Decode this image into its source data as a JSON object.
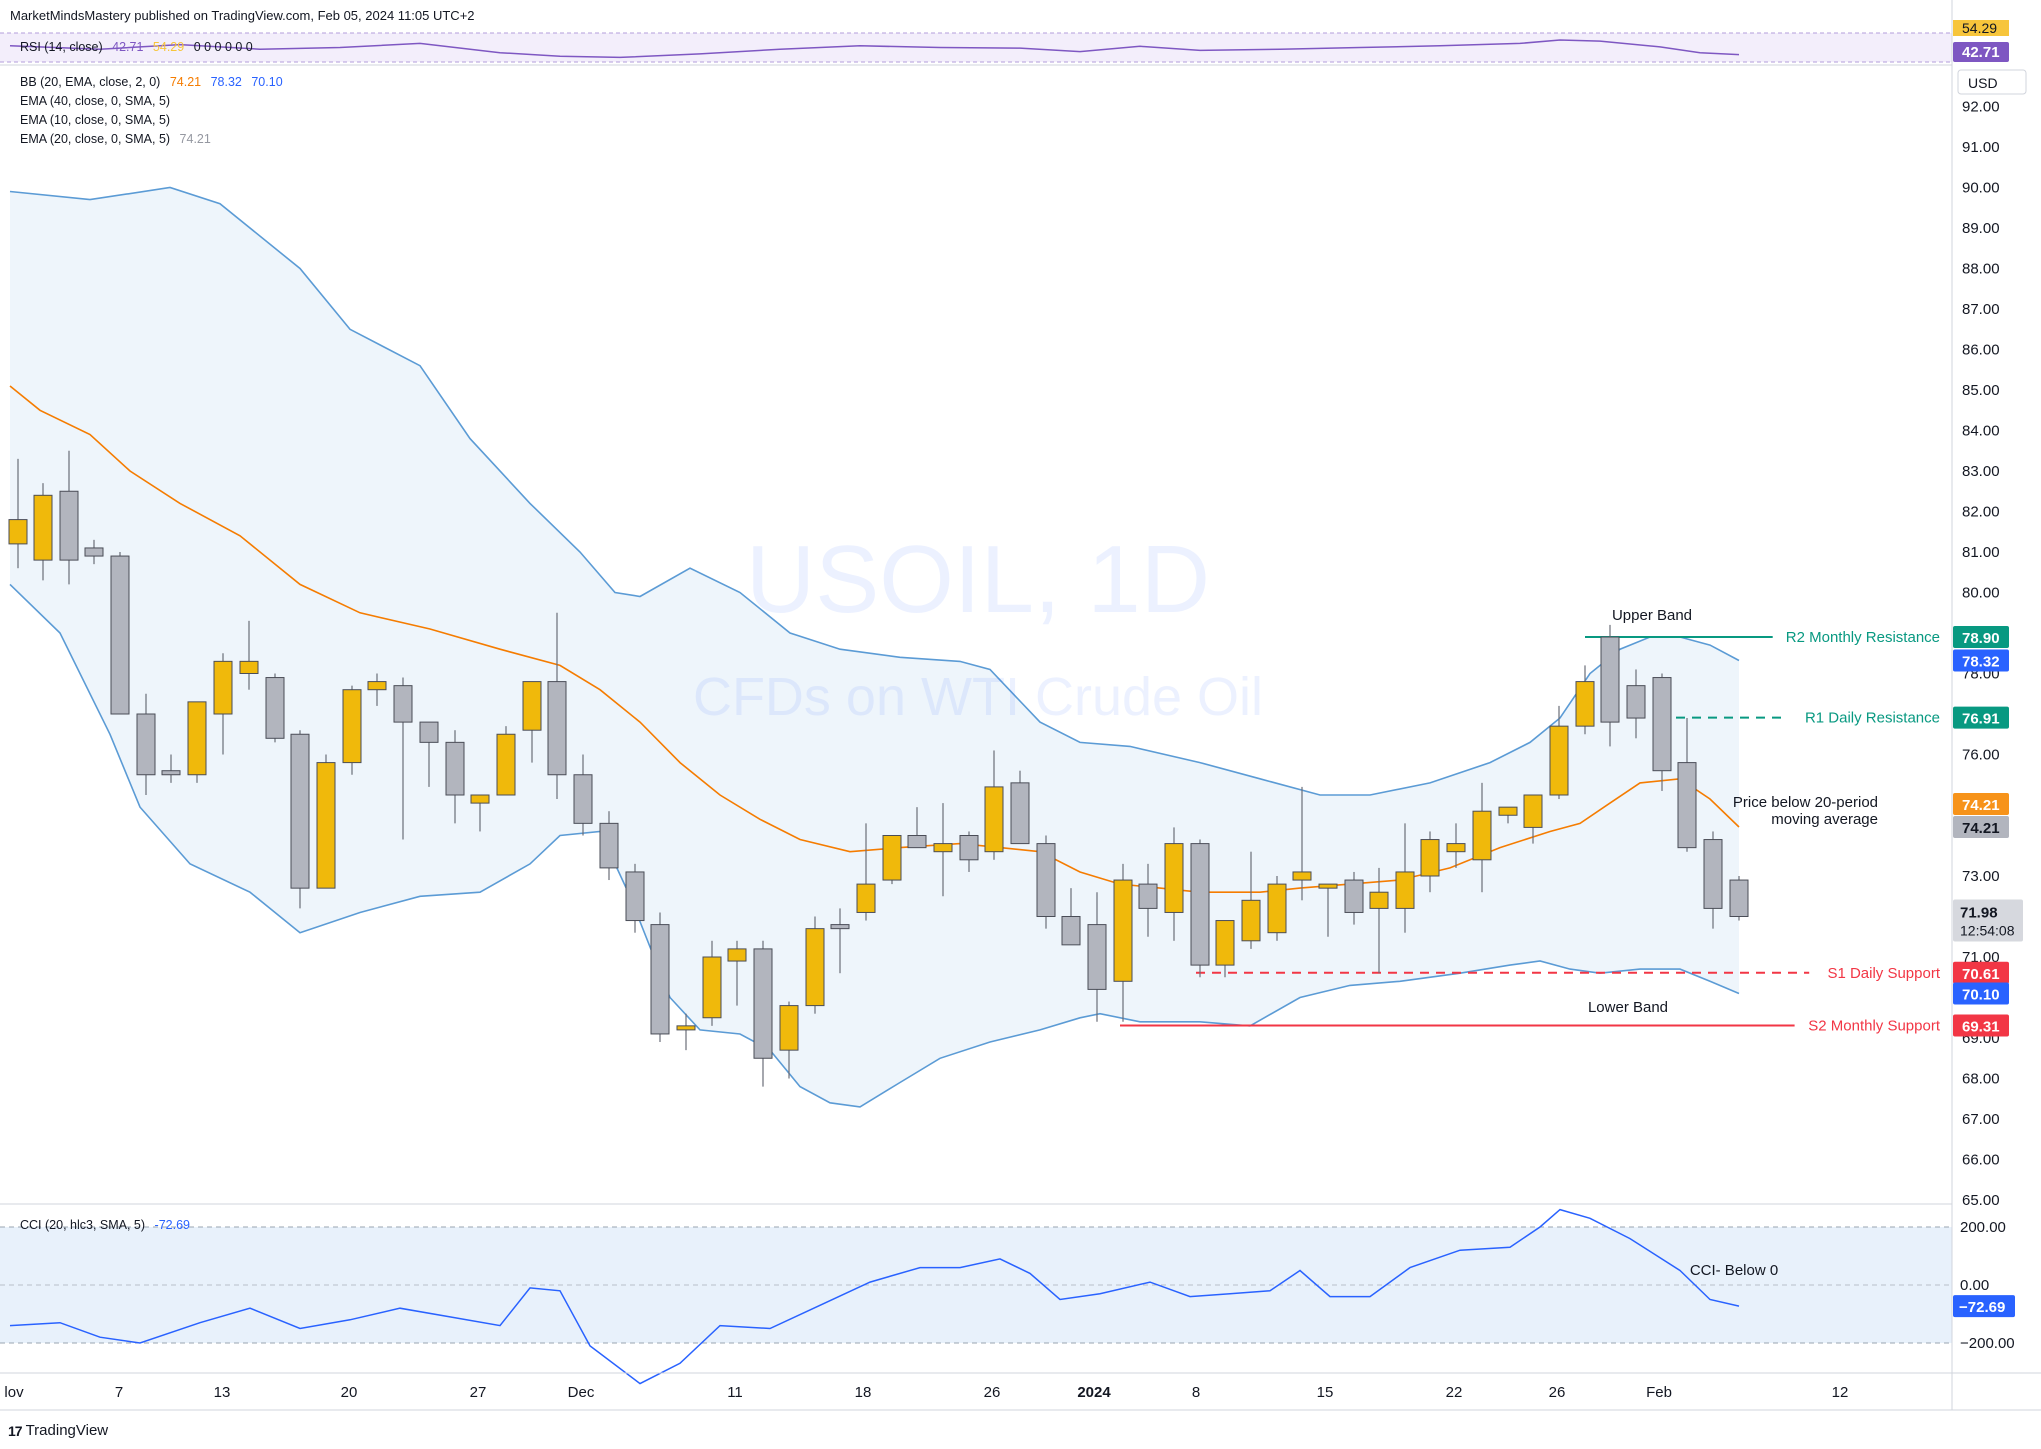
{
  "header": {
    "published": "MarketMindsMastery published on TradingView.com, Feb 05, 2024 11:05 UTC+2"
  },
  "rsi": {
    "label": "RSI (14, close)",
    "value": "42.71",
    "ma_value": "54.29",
    "extra": "0 0 0 0 0 0",
    "axis_top": "54.29",
    "axis_badge": "42.71"
  },
  "indicators": [
    {
      "label": "BB (20, EMA, close, 2, 0)",
      "v1": "74.21",
      "v2": "78.32",
      "v3": "70.10"
    },
    {
      "label": "EMA (40, close, 0, SMA, 5)"
    },
    {
      "label": "EMA (10, close, 0, SMA, 5)"
    },
    {
      "label": "EMA (20, close, 0, SMA, 5)",
      "v1": "74.21"
    }
  ],
  "currency": "USD",
  "watermark": {
    "symbol": "USOIL, 1D",
    "name": "CFDs on WTI Crude Oil"
  },
  "annotations": {
    "upper_band": "Upper Band",
    "lower_band": "Lower Band",
    "price_note_1": "Price below 20-period",
    "price_note_2": "moving average",
    "cci_note": "CCI- Below 0"
  },
  "levels": [
    {
      "label": "R2 Monthly Resistance",
      "value": 78.9,
      "badge": "78.90",
      "color": "#089981",
      "style": "solid"
    },
    {
      "label": "R1 Daily Resistance",
      "value": 76.91,
      "badge": "76.91",
      "color": "#089981",
      "style": "dashed"
    },
    {
      "label": "S1 Daily Support",
      "value": 70.61,
      "badge": "70.61",
      "color": "#f23645",
      "style": "dashed"
    },
    {
      "label": "S2 Monthly Support",
      "value": 69.31,
      "badge": "69.31",
      "color": "#f23645",
      "style": "solid"
    }
  ],
  "price_badges": [
    {
      "value": 78.32,
      "text": "78.32",
      "color": "#2962ff"
    },
    {
      "value": 74.21,
      "text": "74.21",
      "color": "#f7931a"
    },
    {
      "value": 74.21,
      "text": "74.21",
      "color": "#b2b5be"
    },
    {
      "value": 70.1,
      "text": "70.10",
      "color": "#2962ff"
    }
  ],
  "last_price": {
    "value": "71.98",
    "countdown": "12:54:08"
  },
  "cci": {
    "label": "CCI (20, hlc3, SMA, 5)",
    "value": "-72.69",
    "badge": "−72.69",
    "ticks": [
      "200.00",
      "0.00",
      "−200.00"
    ]
  },
  "x_axis": [
    {
      "label": "lov",
      "x": 14
    },
    {
      "label": "7",
      "x": 119
    },
    {
      "label": "13",
      "x": 222
    },
    {
      "label": "20",
      "x": 349
    },
    {
      "label": "27",
      "x": 478
    },
    {
      "label": "Dec",
      "x": 581
    },
    {
      "label": "11",
      "x": 735
    },
    {
      "label": "18",
      "x": 863
    },
    {
      "label": "26",
      "x": 992
    },
    {
      "label": "2024",
      "x": 1094,
      "bold": true
    },
    {
      "label": "8",
      "x": 1196
    },
    {
      "label": "15",
      "x": 1325
    },
    {
      "label": "22",
      "x": 1454
    },
    {
      "label": "26",
      "x": 1557
    },
    {
      "label": "Feb",
      "x": 1659
    },
    {
      "label": "12",
      "x": 1840
    }
  ],
  "brand": "TradingView",
  "colors": {
    "up": "#f0b90b",
    "down": "#b2b5be",
    "band": "#5b9bd5",
    "ema": "#f57c00",
    "band_fill": "#eef5fb"
  },
  "chart_data": {
    "type": "candlestick",
    "title": "USOIL, 1D",
    "subtitle": "CFDs on WTI Crude Oil",
    "ylabel": "USD",
    "ylim": [
      65,
      93
    ],
    "y_ticks": [
      65,
      66,
      67,
      68,
      69,
      71,
      73,
      76,
      78,
      80,
      81,
      82,
      83,
      84,
      85,
      86,
      87,
      88,
      89,
      90,
      91,
      92
    ],
    "candles": [
      {
        "x": 18,
        "o": 81.2,
        "h": 83.3,
        "l": 80.6,
        "c": 81.8
      },
      {
        "x": 43,
        "o": 80.8,
        "h": 82.7,
        "l": 80.3,
        "c": 82.4
      },
      {
        "x": 69,
        "o": 82.5,
        "h": 83.5,
        "l": 80.2,
        "c": 80.8
      },
      {
        "x": 94,
        "o": 81.1,
        "h": 81.3,
        "l": 80.7,
        "c": 80.9
      },
      {
        "x": 120,
        "o": 80.9,
        "h": 81.0,
        "l": 77.0,
        "c": 77.0
      },
      {
        "x": 146,
        "o": 77.0,
        "h": 77.5,
        "l": 75.0,
        "c": 75.5
      },
      {
        "x": 171,
        "o": 75.6,
        "h": 76.0,
        "l": 75.3,
        "c": 75.5
      },
      {
        "x": 197,
        "o": 75.5,
        "h": 77.3,
        "l": 75.3,
        "c": 77.3
      },
      {
        "x": 223,
        "o": 77.0,
        "h": 78.5,
        "l": 76.0,
        "c": 78.3
      },
      {
        "x": 249,
        "o": 78.0,
        "h": 79.3,
        "l": 77.6,
        "c": 78.3
      },
      {
        "x": 275,
        "o": 77.9,
        "h": 78.0,
        "l": 76.3,
        "c": 76.4
      },
      {
        "x": 300,
        "o": 76.5,
        "h": 76.6,
        "l": 72.2,
        "c": 72.7
      },
      {
        "x": 326,
        "o": 72.7,
        "h": 76.0,
        "l": 72.7,
        "c": 75.8
      },
      {
        "x": 352,
        "o": 75.8,
        "h": 77.7,
        "l": 75.5,
        "c": 77.6
      },
      {
        "x": 377,
        "o": 77.6,
        "h": 78.0,
        "l": 77.2,
        "c": 77.8
      },
      {
        "x": 403,
        "o": 77.7,
        "h": 77.9,
        "l": 73.9,
        "c": 76.8
      },
      {
        "x": 429,
        "o": 76.8,
        "h": 76.8,
        "l": 75.2,
        "c": 76.3
      },
      {
        "x": 455,
        "o": 76.3,
        "h": 76.6,
        "l": 74.3,
        "c": 75.0
      },
      {
        "x": 480,
        "o": 74.8,
        "h": 75.0,
        "l": 74.1,
        "c": 75.0
      },
      {
        "x": 506,
        "o": 75.0,
        "h": 76.7,
        "l": 75.0,
        "c": 76.5
      },
      {
        "x": 532,
        "o": 76.6,
        "h": 77.8,
        "l": 75.8,
        "c": 77.8
      },
      {
        "x": 557,
        "o": 77.8,
        "h": 79.5,
        "l": 74.9,
        "c": 75.5
      },
      {
        "x": 583,
        "o": 75.5,
        "h": 76.0,
        "l": 74.0,
        "c": 74.3
      },
      {
        "x": 609,
        "o": 74.3,
        "h": 74.6,
        "l": 72.9,
        "c": 73.2
      },
      {
        "x": 635,
        "o": 73.1,
        "h": 73.3,
        "l": 71.6,
        "c": 71.9
      },
      {
        "x": 660,
        "o": 71.8,
        "h": 72.1,
        "l": 68.9,
        "c": 69.1
      },
      {
        "x": 686,
        "o": 69.2,
        "h": 69.6,
        "l": 68.7,
        "c": 69.3
      },
      {
        "x": 712,
        "o": 69.5,
        "h": 71.4,
        "l": 69.3,
        "c": 71.0
      },
      {
        "x": 737,
        "o": 70.9,
        "h": 71.4,
        "l": 69.8,
        "c": 71.2
      },
      {
        "x": 763,
        "o": 71.2,
        "h": 71.4,
        "l": 67.8,
        "c": 68.5
      },
      {
        "x": 789,
        "o": 68.7,
        "h": 69.9,
        "l": 68.0,
        "c": 69.8
      },
      {
        "x": 815,
        "o": 69.8,
        "h": 72.0,
        "l": 69.6,
        "c": 71.7
      },
      {
        "x": 840,
        "o": 71.8,
        "h": 72.2,
        "l": 70.6,
        "c": 71.7
      },
      {
        "x": 866,
        "o": 72.1,
        "h": 74.3,
        "l": 71.9,
        "c": 72.8
      },
      {
        "x": 892,
        "o": 72.9,
        "h": 74.0,
        "l": 72.8,
        "c": 74.0
      },
      {
        "x": 917,
        "o": 74.0,
        "h": 74.7,
        "l": 73.9,
        "c": 73.7
      },
      {
        "x": 943,
        "o": 73.6,
        "h": 74.8,
        "l": 72.5,
        "c": 73.8
      },
      {
        "x": 969,
        "o": 74.0,
        "h": 74.1,
        "l": 73.1,
        "c": 73.4
      },
      {
        "x": 994,
        "o": 73.6,
        "h": 76.1,
        "l": 73.4,
        "c": 75.2
      },
      {
        "x": 1020,
        "o": 75.3,
        "h": 75.6,
        "l": 73.8,
        "c": 73.8
      },
      {
        "x": 1046,
        "o": 73.8,
        "h": 74.0,
        "l": 71.7,
        "c": 72.0
      },
      {
        "x": 1071,
        "o": 72.0,
        "h": 72.7,
        "l": 71.3,
        "c": 71.3
      },
      {
        "x": 1097,
        "o": 71.8,
        "h": 72.6,
        "l": 69.4,
        "c": 70.2
      },
      {
        "x": 1123,
        "o": 70.4,
        "h": 73.3,
        "l": 69.4,
        "c": 72.9
      },
      {
        "x": 1148,
        "o": 72.8,
        "h": 73.3,
        "l": 71.5,
        "c": 72.2
      },
      {
        "x": 1174,
        "o": 72.1,
        "h": 74.2,
        "l": 71.4,
        "c": 73.8
      },
      {
        "x": 1200,
        "o": 73.8,
        "h": 73.9,
        "l": 70.5,
        "c": 70.8
      },
      {
        "x": 1225,
        "o": 70.8,
        "h": 71.9,
        "l": 70.5,
        "c": 71.9
      },
      {
        "x": 1251,
        "o": 71.4,
        "h": 73.6,
        "l": 71.2,
        "c": 72.4
      },
      {
        "x": 1277,
        "o": 71.6,
        "h": 73.0,
        "l": 71.4,
        "c": 72.8
      },
      {
        "x": 1302,
        "o": 72.9,
        "h": 75.2,
        "l": 72.4,
        "c": 73.1
      },
      {
        "x": 1328,
        "o": 72.7,
        "h": 72.8,
        "l": 71.5,
        "c": 72.8
      },
      {
        "x": 1354,
        "o": 72.9,
        "h": 73.1,
        "l": 71.8,
        "c": 72.1
      },
      {
        "x": 1379,
        "o": 72.2,
        "h": 73.2,
        "l": 70.6,
        "c": 72.6
      },
      {
        "x": 1405,
        "o": 72.2,
        "h": 74.3,
        "l": 71.6,
        "c": 73.1
      },
      {
        "x": 1430,
        "o": 73.0,
        "h": 74.1,
        "l": 72.6,
        "c": 73.9
      },
      {
        "x": 1456,
        "o": 73.6,
        "h": 74.3,
        "l": 73.2,
        "c": 73.8
      },
      {
        "x": 1482,
        "o": 73.4,
        "h": 75.3,
        "l": 72.6,
        "c": 74.6
      },
      {
        "x": 1508,
        "o": 74.5,
        "h": 74.7,
        "l": 74.3,
        "c": 74.7
      },
      {
        "x": 1533,
        "o": 74.2,
        "h": 75.0,
        "l": 73.8,
        "c": 75.0
      },
      {
        "x": 1559,
        "o": 75.0,
        "h": 77.2,
        "l": 74.9,
        "c": 76.7
      },
      {
        "x": 1585,
        "o": 76.7,
        "h": 78.2,
        "l": 76.5,
        "c": 77.8
      },
      {
        "x": 1610,
        "o": 78.9,
        "h": 79.2,
        "l": 76.2,
        "c": 76.8
      },
      {
        "x": 1636,
        "o": 77.7,
        "h": 78.1,
        "l": 76.4,
        "c": 76.9
      },
      {
        "x": 1662,
        "o": 77.9,
        "h": 78.0,
        "l": 75.1,
        "c": 75.6
      },
      {
        "x": 1687,
        "o": 75.8,
        "h": 76.9,
        "l": 73.6,
        "c": 73.7
      },
      {
        "x": 1713,
        "o": 73.9,
        "h": 74.1,
        "l": 71.7,
        "c": 72.2
      },
      {
        "x": 1739,
        "o": 72.9,
        "h": 73.0,
        "l": 71.9,
        "c": 72.0
      }
    ],
    "bb_upper": [
      [
        10,
        89.9
      ],
      [
        90,
        89.7
      ],
      [
        170,
        90.0
      ],
      [
        220,
        89.6
      ],
      [
        300,
        88.0
      ],
      [
        350,
        86.5
      ],
      [
        420,
        85.6
      ],
      [
        470,
        83.8
      ],
      [
        530,
        82.2
      ],
      [
        580,
        81.0
      ],
      [
        615,
        80.0
      ],
      [
        640,
        79.9
      ],
      [
        690,
        80.6
      ],
      [
        740,
        80.0
      ],
      [
        790,
        79.0
      ],
      [
        840,
        78.6
      ],
      [
        900,
        78.4
      ],
      [
        960,
        78.3
      ],
      [
        990,
        78.1
      ],
      [
        1040,
        76.8
      ],
      [
        1080,
        76.3
      ],
      [
        1130,
        76.2
      ],
      [
        1200,
        75.8
      ],
      [
        1260,
        75.4
      ],
      [
        1320,
        75.0
      ],
      [
        1370,
        75.0
      ],
      [
        1430,
        75.3
      ],
      [
        1490,
        75.8
      ],
      [
        1530,
        76.3
      ],
      [
        1560,
        76.9
      ],
      [
        1590,
        78.0
      ],
      [
        1620,
        78.6
      ],
      [
        1650,
        78.9
      ],
      [
        1680,
        78.9
      ],
      [
        1710,
        78.7
      ],
      [
        1739,
        78.32
      ]
    ],
    "bb_lower": [
      [
        10,
        80.2
      ],
      [
        60,
        79.0
      ],
      [
        110,
        76.5
      ],
      [
        140,
        74.7
      ],
      [
        190,
        73.3
      ],
      [
        250,
        72.6
      ],
      [
        300,
        71.6
      ],
      [
        360,
        72.1
      ],
      [
        420,
        72.5
      ],
      [
        480,
        72.6
      ],
      [
        530,
        73.3
      ],
      [
        560,
        74.0
      ],
      [
        600,
        74.1
      ],
      [
        630,
        72.5
      ],
      [
        670,
        70.0
      ],
      [
        700,
        69.2
      ],
      [
        740,
        69.1
      ],
      [
        770,
        68.7
      ],
      [
        800,
        67.8
      ],
      [
        830,
        67.4
      ],
      [
        860,
        67.3
      ],
      [
        900,
        67.9
      ],
      [
        940,
        68.5
      ],
      [
        990,
        68.9
      ],
      [
        1040,
        69.2
      ],
      [
        1080,
        69.5
      ],
      [
        1100,
        69.6
      ],
      [
        1140,
        69.4
      ],
      [
        1200,
        69.4
      ],
      [
        1250,
        69.3
      ],
      [
        1300,
        70.0
      ],
      [
        1350,
        70.3
      ],
      [
        1400,
        70.4
      ],
      [
        1460,
        70.6
      ],
      [
        1510,
        70.8
      ],
      [
        1540,
        70.9
      ],
      [
        1570,
        70.7
      ],
      [
        1600,
        70.6
      ],
      [
        1640,
        70.7
      ],
      [
        1680,
        70.7
      ],
      [
        1710,
        70.4
      ],
      [
        1739,
        70.1
      ]
    ],
    "ema_20": [
      [
        10,
        85.1
      ],
      [
        40,
        84.5
      ],
      [
        90,
        83.9
      ],
      [
        130,
        83.0
      ],
      [
        180,
        82.2
      ],
      [
        240,
        81.4
      ],
      [
        300,
        80.2
      ],
      [
        360,
        79.5
      ],
      [
        430,
        79.1
      ],
      [
        500,
        78.6
      ],
      [
        560,
        78.2
      ],
      [
        600,
        77.6
      ],
      [
        640,
        76.8
      ],
      [
        680,
        75.8
      ],
      [
        720,
        75.0
      ],
      [
        760,
        74.4
      ],
      [
        800,
        73.9
      ],
      [
        850,
        73.6
      ],
      [
        900,
        73.7
      ],
      [
        960,
        73.8
      ],
      [
        1000,
        73.7
      ],
      [
        1040,
        73.6
      ],
      [
        1080,
        73.1
      ],
      [
        1120,
        72.8
      ],
      [
        1160,
        72.7
      ],
      [
        1200,
        72.6
      ],
      [
        1260,
        72.6
      ],
      [
        1300,
        72.7
      ],
      [
        1350,
        72.8
      ],
      [
        1400,
        72.9
      ],
      [
        1450,
        73.2
      ],
      [
        1500,
        73.7
      ],
      [
        1550,
        74.1
      ],
      [
        1580,
        74.3
      ],
      [
        1610,
        74.8
      ],
      [
        1640,
        75.3
      ],
      [
        1680,
        75.4
      ],
      [
        1710,
        74.9
      ],
      [
        1739,
        74.21
      ]
    ],
    "rsi_series": [
      [
        10,
        58
      ],
      [
        100,
        52
      ],
      [
        180,
        60
      ],
      [
        260,
        52
      ],
      [
        340,
        55
      ],
      [
        420,
        62
      ],
      [
        500,
        46
      ],
      [
        560,
        40
      ],
      [
        620,
        38
      ],
      [
        700,
        44
      ],
      [
        780,
        52
      ],
      [
        860,
        58
      ],
      [
        940,
        55
      ],
      [
        1020,
        54
      ],
      [
        1080,
        48
      ],
      [
        1140,
        57
      ],
      [
        1200,
        50
      ],
      [
        1280,
        52
      ],
      [
        1360,
        55
      ],
      [
        1440,
        58
      ],
      [
        1520,
        62
      ],
      [
        1560,
        68
      ],
      [
        1600,
        66
      ],
      [
        1660,
        56
      ],
      [
        1700,
        46
      ],
      [
        1739,
        42.71
      ]
    ],
    "cci_series": [
      [
        10,
        -140
      ],
      [
        60,
        -130
      ],
      [
        100,
        -180
      ],
      [
        140,
        -200
      ],
      [
        200,
        -130
      ],
      [
        250,
        -80
      ],
      [
        300,
        -150
      ],
      [
        350,
        -120
      ],
      [
        400,
        -80
      ],
      [
        450,
        -110
      ],
      [
        500,
        -140
      ],
      [
        530,
        -10
      ],
      [
        560,
        -20
      ],
      [
        590,
        -210
      ],
      [
        640,
        -340
      ],
      [
        680,
        -270
      ],
      [
        720,
        -140
      ],
      [
        770,
        -150
      ],
      [
        820,
        -70
      ],
      [
        870,
        10
      ],
      [
        920,
        60
      ],
      [
        960,
        60
      ],
      [
        1000,
        90
      ],
      [
        1030,
        40
      ],
      [
        1060,
        -50
      ],
      [
        1100,
        -30
      ],
      [
        1150,
        10
      ],
      [
        1190,
        -40
      ],
      [
        1230,
        -30
      ],
      [
        1270,
        -20
      ],
      [
        1300,
        50
      ],
      [
        1330,
        -40
      ],
      [
        1370,
        -40
      ],
      [
        1410,
        60
      ],
      [
        1460,
        120
      ],
      [
        1510,
        130
      ],
      [
        1540,
        200
      ],
      [
        1560,
        260
      ],
      [
        1590,
        230
      ],
      [
        1630,
        160
      ],
      [
        1680,
        50
      ],
      [
        1710,
        -50
      ],
      [
        1739,
        -72.69
      ]
    ]
  }
}
